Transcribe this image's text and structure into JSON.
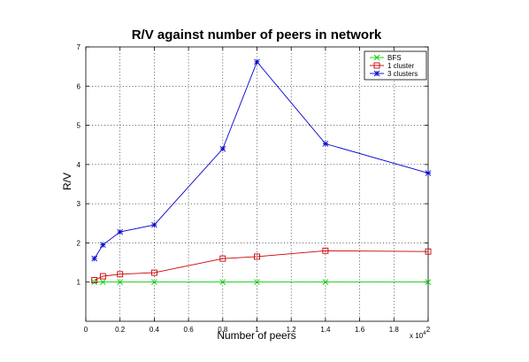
{
  "chart_data": {
    "type": "line",
    "title": "R/V against number of peers in network",
    "xlabel": "Number of peers",
    "ylabel": "R/V",
    "x_multiplier_label": "x 10",
    "x_multiplier_exponent": "4",
    "xlim": [
      0,
      2
    ],
    "ylim": [
      0,
      7
    ],
    "xticks": [
      "0",
      "0.2",
      "0.4",
      "0.6",
      "0.8",
      "1",
      "1.2",
      "1.4",
      "1.6",
      "1.8",
      "2"
    ],
    "yticks": [
      "1",
      "2",
      "3",
      "4",
      "5",
      "6",
      "7"
    ],
    "grid": true,
    "legend_position": "top-right",
    "series": [
      {
        "name": "BFS",
        "color": "#00cc00",
        "marker": "x",
        "x": [
          0.05,
          0.1,
          0.2,
          0.4,
          0.8,
          1.0,
          1.4,
          2.0
        ],
        "y": [
          1.0,
          1.0,
          1.0,
          1.0,
          1.0,
          1.0,
          1.0,
          1.0
        ]
      },
      {
        "name": "1 cluster",
        "color": "#cc0000",
        "marker": "square",
        "x": [
          0.05,
          0.1,
          0.2,
          0.4,
          0.8,
          1.0,
          1.4,
          2.0
        ],
        "y": [
          1.05,
          1.15,
          1.2,
          1.24,
          1.6,
          1.65,
          1.8,
          1.78
        ]
      },
      {
        "name": "3 clusters",
        "color": "#0000cc",
        "marker": "star",
        "x": [
          0.05,
          0.1,
          0.2,
          0.4,
          0.8,
          1.0,
          1.4,
          2.0
        ],
        "y": [
          1.6,
          1.95,
          2.28,
          2.46,
          4.4,
          6.62,
          4.53,
          3.78
        ]
      }
    ]
  }
}
